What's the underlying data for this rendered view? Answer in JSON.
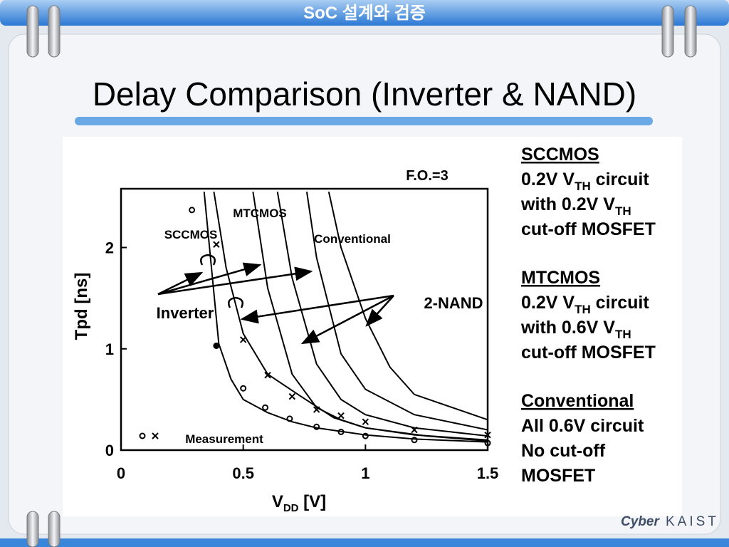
{
  "header": {
    "banner": "SoC 설계와 검증",
    "title": "Delay Comparison (Inverter & NAND)",
    "logo": [
      "Cyber",
      "KAIST"
    ]
  },
  "chart_data": {
    "type": "line",
    "y_label": "Tpd [ns]",
    "x_label": [
      {
        "text": "V"
      },
      {
        "sub": "DD"
      },
      {
        "text": " [V]"
      }
    ],
    "xlim": [
      0,
      1.5
    ],
    "ylim": [
      0,
      2.58
    ],
    "xticks": [
      0,
      0.5,
      1,
      1.5
    ],
    "yticks": [
      0,
      1,
      2
    ],
    "annotations": {
      "fanout": "F.O.=3",
      "sccmos": "SCCMOS",
      "mtcmos": "MTCMOS",
      "conventional": "Conventional",
      "inverter": "Inverter",
      "nand": "2-NAND",
      "measurement": "Measurement"
    },
    "series": [
      {
        "style": "line",
        "color": "#000000",
        "x": [
          0.34,
          0.37,
          0.4,
          0.45,
          0.5,
          0.6,
          0.7,
          0.8,
          1.0,
          1.2,
          1.5
        ],
        "values": [
          2.55,
          1.8,
          1.05,
          0.7,
          0.5,
          0.37,
          0.28,
          0.22,
          0.15,
          0.11,
          0.08
        ]
      },
      {
        "style": "line",
        "color": "#000000",
        "x": [
          0.38,
          0.43,
          0.5,
          0.6,
          0.73,
          0.87,
          1.0,
          1.25,
          1.5
        ],
        "values": [
          2.55,
          1.8,
          1.15,
          0.75,
          0.54,
          0.32,
          0.22,
          0.14,
          0.09
        ]
      },
      {
        "style": "line",
        "color": "#000000",
        "x": [
          0.54,
          0.6,
          0.7,
          0.8,
          0.9,
          1.0,
          1.2,
          1.5
        ],
        "values": [
          2.55,
          1.6,
          0.75,
          0.42,
          0.3,
          0.22,
          0.15,
          0.1
        ]
      },
      {
        "style": "line",
        "color": "#000000",
        "x": [
          0.64,
          0.7,
          0.8,
          0.9,
          1.0,
          1.2,
          1.5
        ],
        "values": [
          2.55,
          1.7,
          0.85,
          0.5,
          0.35,
          0.22,
          0.14
        ]
      },
      {
        "style": "line",
        "color": "#000000",
        "x": [
          0.76,
          0.8,
          0.9,
          1.0,
          1.2,
          1.5
        ],
        "values": [
          2.55,
          1.9,
          0.95,
          0.6,
          0.35,
          0.2
        ]
      },
      {
        "style": "line",
        "color": "#000000",
        "x": [
          0.85,
          0.9,
          1.0,
          1.1,
          1.2,
          1.5
        ],
        "values": [
          2.55,
          2.0,
          1.3,
          0.82,
          0.55,
          0.3
        ]
      },
      {
        "style": "circle",
        "color": "#000000",
        "x": [
          0.29,
          0.39,
          0.5,
          0.59,
          0.69,
          0.8,
          0.9,
          1.0,
          1.2,
          1.5
        ],
        "values": [
          2.37,
          1.03,
          0.61,
          0.42,
          0.31,
          0.23,
          0.18,
          0.14,
          0.1,
          0.07
        ]
      },
      {
        "style": "cross",
        "color": "#000000",
        "x": [
          0.39,
          0.5,
          0.6,
          0.7,
          0.8,
          0.9,
          1.0,
          1.2,
          1.5
        ],
        "values": [
          2.03,
          1.09,
          0.74,
          0.53,
          0.4,
          0.34,
          0.28,
          0.2,
          0.15
        ]
      }
    ]
  },
  "notes": [
    {
      "heading": "SCCMOS",
      "lines": [
        [
          {
            "text": "0.2V V"
          },
          {
            "sub": "TH"
          },
          {
            "text": " circuit"
          }
        ],
        [
          {
            "text": "with 0.2V V"
          },
          {
            "sub": "TH"
          }
        ],
        [
          {
            "text": "cut-off MOSFET"
          }
        ]
      ]
    },
    {
      "heading": "MTCMOS",
      "lines": [
        [
          {
            "text": "0.2V V"
          },
          {
            "sub": "TH"
          },
          {
            "text": " circuit"
          }
        ],
        [
          {
            "text": "with 0.6V V"
          },
          {
            "sub": "TH"
          }
        ],
        [
          {
            "text": "cut-off MOSFET"
          }
        ]
      ]
    },
    {
      "heading": "Conventional",
      "lines": [
        [
          {
            "text": "All 0.6V circuit"
          }
        ],
        [
          {
            "text": "No cut-off"
          }
        ],
        [
          {
            "text": "MOSFET"
          }
        ]
      ]
    }
  ]
}
